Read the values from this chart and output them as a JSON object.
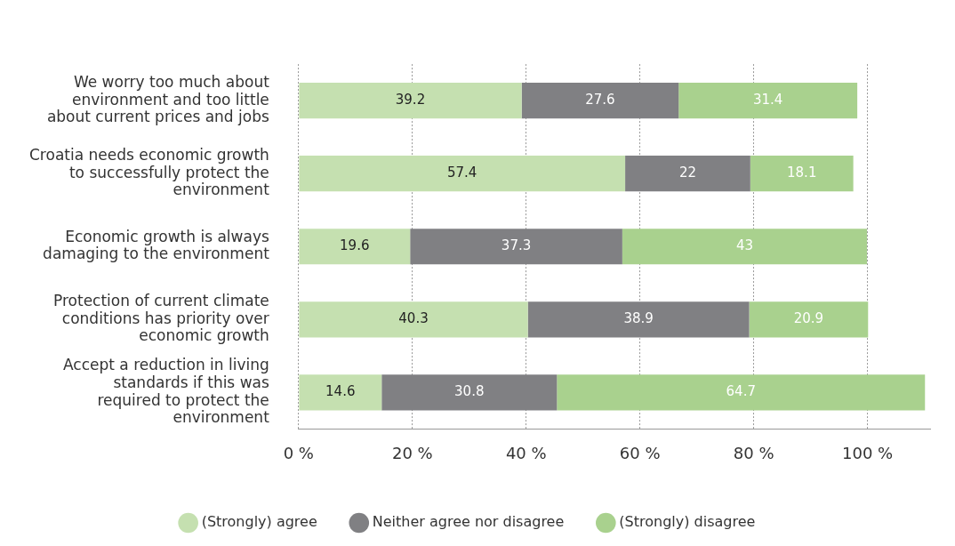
{
  "chart_data": {
    "type": "bar",
    "orientation": "horizontal",
    "stacked": true,
    "data_labels": true,
    "grid": "x",
    "legend": "bottom",
    "categories": [
      "We worry too much about environment and too little about current prices and jobs",
      "Croatia needs economic growth to successfully protect the environment",
      "Economic growth is always damaging to the environment",
      "Protection of current climate conditions has priority over economic growth",
      "Accept a reduction in living standards if this was required to protect the environment"
    ],
    "series": [
      {
        "name": "(Strongly) agree",
        "color": "#c5e0b0",
        "values": [
          39.2,
          57.4,
          19.6,
          40.3,
          14.6
        ]
      },
      {
        "name": "Neither agree nor disagree",
        "color": "#808083",
        "values": [
          27.6,
          22,
          37.3,
          38.9,
          30.8
        ]
      },
      {
        "name": "(Strongly) disagree",
        "color": "#a9d18e",
        "values": [
          31.4,
          18.1,
          43,
          20.9,
          64.7
        ]
      }
    ],
    "xlim": [
      0,
      111
    ],
    "xticks": [
      {
        "value": 0,
        "label": "0 %"
      },
      {
        "value": 20,
        "label": "20 %"
      },
      {
        "value": 40,
        "label": "40 %"
      },
      {
        "value": 60,
        "label": "60 %"
      },
      {
        "value": 80,
        "label": "80 %"
      },
      {
        "value": 100,
        "label": "100 %"
      }
    ]
  }
}
